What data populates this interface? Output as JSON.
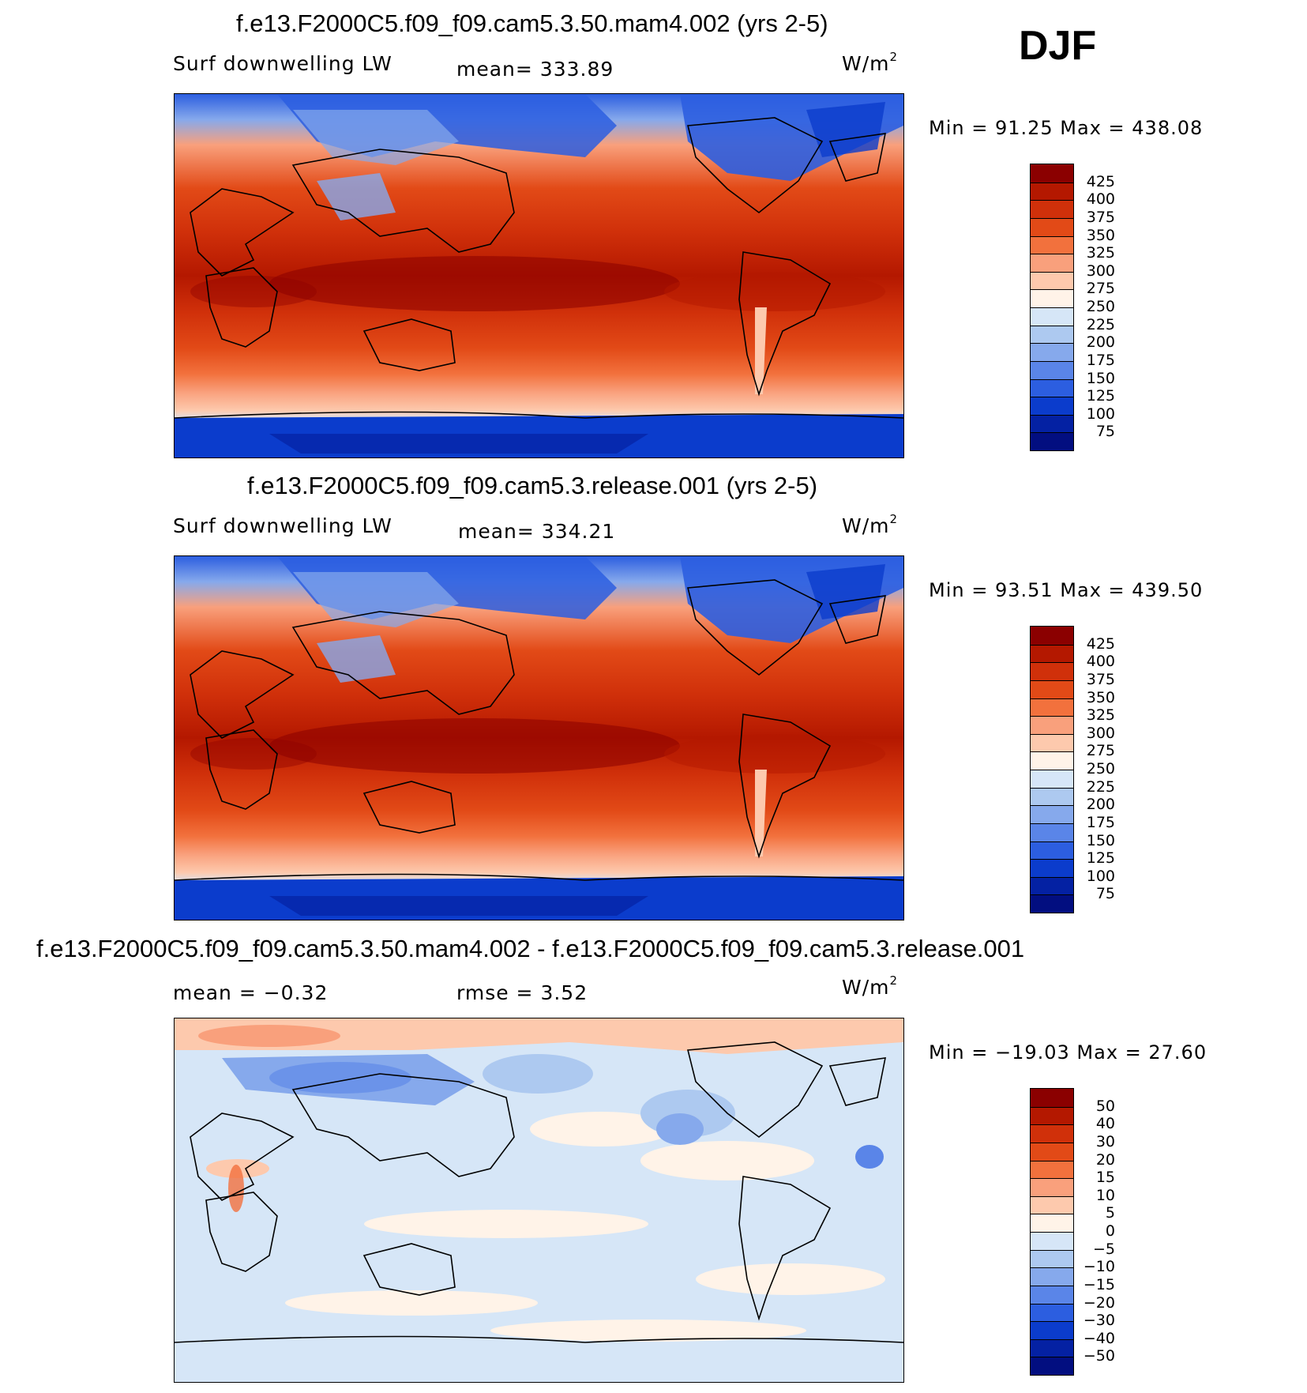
{
  "season": "DJF",
  "panels": [
    {
      "title": "f.e13.F2000C5.f09_f09.cam5.3.50.mam4.002 (yrs 2-5)",
      "variable": "Surf downwelling LW",
      "stat": "mean=  333.89",
      "units": "W/m",
      "units_sup": "2",
      "minmax": "Min =   91.25  Max  =  438.08",
      "colorbar": {
        "labels": [
          "425",
          "400",
          "375",
          "350",
          "325",
          "300",
          "275",
          "250",
          "225",
          "200",
          "175",
          "150",
          "125",
          "100",
          "75"
        ],
        "colors": [
          "#8b0000",
          "#b41800",
          "#d0300a",
          "#e24a17",
          "#f2713d",
          "#f9a07c",
          "#fdc9ad",
          "#fff3e8",
          "#d6e6f7",
          "#adc9f0",
          "#86a9ec",
          "#5a85e8",
          "#2c5ee0",
          "#0b3ccc",
          "#0421a3",
          "#020e80"
        ]
      }
    },
    {
      "title": "f.e13.F2000C5.f09_f09.cam5.3.release.001 (yrs 2-5)",
      "variable": "Surf downwelling LW",
      "stat": "mean=  334.21",
      "units": "W/m",
      "units_sup": "2",
      "minmax": "Min =   93.51  Max  =  439.50",
      "colorbar": {
        "labels": [
          "425",
          "400",
          "375",
          "350",
          "325",
          "300",
          "275",
          "250",
          "225",
          "200",
          "175",
          "150",
          "125",
          "100",
          "75"
        ],
        "colors": [
          "#8b0000",
          "#b41800",
          "#d0300a",
          "#e24a17",
          "#f2713d",
          "#f9a07c",
          "#fdc9ad",
          "#fff3e8",
          "#d6e6f7",
          "#adc9f0",
          "#86a9ec",
          "#5a85e8",
          "#2c5ee0",
          "#0b3ccc",
          "#0421a3",
          "#020e80"
        ]
      }
    },
    {
      "title": "f.e13.F2000C5.f09_f09.cam5.3.50.mam4.002 - f.e13.F2000C5.f09_f09.cam5.3.release.001",
      "mean_text": "mean  =   −0.32",
      "rmse_text": "rmse  =     3.52",
      "units": "W/m",
      "units_sup": "2",
      "minmax": "Min  = −19.03  Max  =    27.60",
      "colorbar": {
        "labels": [
          "50",
          "40",
          "30",
          "20",
          "15",
          "10",
          "5",
          "0",
          "−5",
          "−10",
          "−15",
          "−20",
          "−30",
          "−40",
          "−50"
        ],
        "colors": [
          "#8b0000",
          "#b41800",
          "#d0300a",
          "#e24a17",
          "#f2713d",
          "#f9a07c",
          "#fdc9ad",
          "#fff3e8",
          "#d6e6f7",
          "#adc9f0",
          "#86a9ec",
          "#5a85e8",
          "#2c5ee0",
          "#0b3ccc",
          "#0421a3",
          "#020e80"
        ]
      }
    }
  ]
}
